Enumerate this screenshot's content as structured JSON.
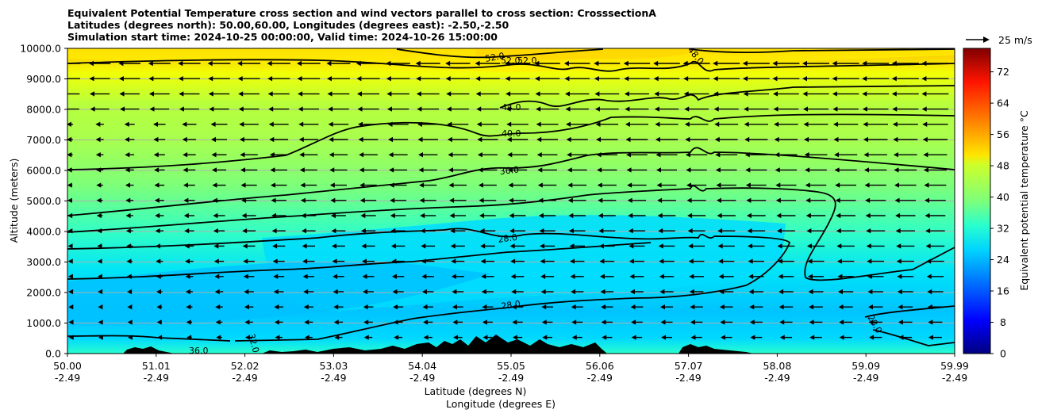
{
  "chart_data": {
    "type": "contour",
    "title_lines": [
      "Equivalent Potential Temperature cross section and wind vectors parallel to cross section: CrosssectionA",
      "Latitudes (degrees north): 50.00,60.00, Longitudes (degrees east): -2.50,-2.50",
      "Simulation start time: 2024-10-25 00:00:00, Valid time: 2024-10-26 15:00:00"
    ],
    "ylabel": "Altitude (meters)",
    "xlabel_lat": "Latitude (degrees N)",
    "xlabel_lon": "Longitude (degrees E)",
    "ylim": [
      0,
      10000
    ],
    "y_ticks": [
      "0.0",
      "1000.0",
      "2000.0",
      "3000.0",
      "4000.0",
      "5000.0",
      "6000.0",
      "7000.0",
      "8000.0",
      "9000.0",
      "10000.0"
    ],
    "y_tick_values": [
      0,
      1000,
      2000,
      3000,
      4000,
      5000,
      6000,
      7000,
      8000,
      9000,
      10000
    ],
    "x_ticks_lat": [
      "50.00",
      "51.01",
      "52.02",
      "53.03",
      "54.04",
      "55.05",
      "56.06",
      "57.07",
      "58.08",
      "59.09",
      "59.99"
    ],
    "x_ticks_lon": [
      "-2.49",
      "-2.49",
      "-2.49",
      "-2.49",
      "-2.49",
      "-2.49",
      "-2.49",
      "-2.49",
      "-2.49",
      "-2.49",
      "-2.49"
    ],
    "contour_labels": [
      "52.0",
      "52.0",
      "52.0",
      "44.0",
      "40.0",
      "36.0",
      "28.0",
      "28.0",
      "28.0",
      "36.0",
      "32.0",
      "28.0",
      "48.0"
    ],
    "colorbar": {
      "label": "Equivalent potential temperature °C",
      "ticks": [
        "0",
        "8",
        "16",
        "24",
        "32",
        "40",
        "48",
        "56",
        "64",
        "72"
      ],
      "tick_values": [
        0,
        8,
        16,
        24,
        32,
        40,
        48,
        56,
        64,
        72
      ],
      "range": [
        0,
        78
      ]
    },
    "quiver_key": "25 m/s"
  }
}
